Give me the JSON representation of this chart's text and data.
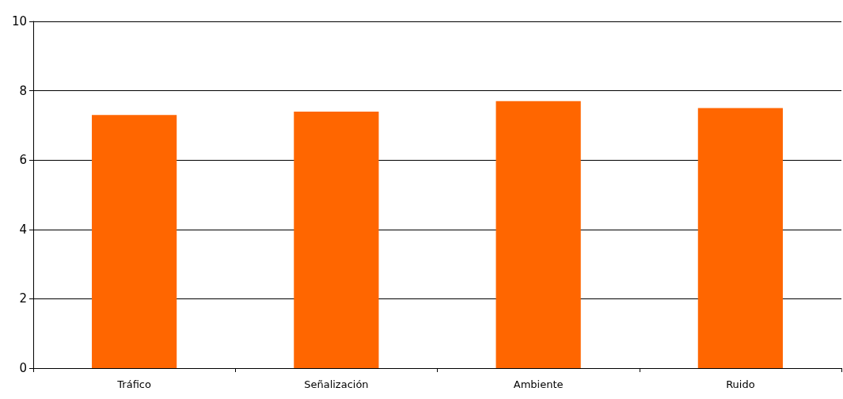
{
  "chart_data": {
    "type": "bar",
    "categories": [
      "Tráfico",
      "Señalización",
      "Ambiente",
      "Ruido"
    ],
    "values": [
      7.3,
      7.4,
      7.7,
      7.5
    ],
    "color": "#ff6600",
    "ylim": [
      0,
      10
    ],
    "yticks": [
      0,
      2,
      4,
      6,
      8,
      10
    ],
    "grid": "y"
  }
}
